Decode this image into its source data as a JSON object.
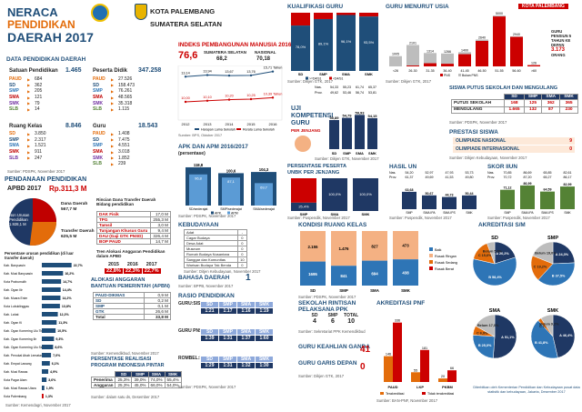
{
  "title": {
    "l1": "NERACA",
    "l2": "PENDIDIKAN",
    "l3": "DAERAH 2017",
    "region1": "KOTA PALEMBANG",
    "region2": "SUMATERA SELATAN"
  },
  "data_pendidikan": {
    "header": "DATA PENDIDIKAN DAERAH",
    "satuan": {
      "label": "Satuan Pendidikan",
      "total": "1.465",
      "rows": [
        [
          "PAUD",
          "684"
        ],
        [
          "SD",
          "362"
        ],
        [
          "SMP",
          "205"
        ],
        [
          "SMA",
          "121"
        ],
        [
          "SMK",
          "79"
        ],
        [
          "SLB",
          "14"
        ]
      ]
    },
    "peserta": {
      "label": "Peserta Didik",
      "total": "347.258",
      "rows": [
        [
          "PAUD",
          "27.526"
        ],
        [
          "SD",
          "158.473"
        ],
        [
          "SMP",
          "76.261"
        ],
        [
          "SMA",
          "48.565"
        ],
        [
          "SMK",
          "35.318"
        ],
        [
          "SLB",
          "1.115"
        ]
      ]
    },
    "ruang": {
      "label": "Ruang Kelas",
      "total": "8.846",
      "rows": [
        [
          "SD",
          "3.850"
        ],
        [
          "SMP",
          "2.317"
        ],
        [
          "SMA",
          "1.521"
        ],
        [
          "SMK",
          "911"
        ],
        [
          "SLB",
          "247"
        ]
      ]
    },
    "guru": {
      "label": "Guru",
      "total": "18.543",
      "rows": [
        [
          "PAUD",
          "1.408"
        ],
        [
          "SD",
          "7.475"
        ],
        [
          "SMP",
          "4.551"
        ],
        [
          "SMA",
          "3.018"
        ],
        [
          "SMK",
          "1.852"
        ],
        [
          "SLB",
          "239"
        ]
      ]
    },
    "src": "Sumber: PDSPK, November 2017"
  },
  "ipm": {
    "header": "INDEKS PEMBANGUNAN MANUSIA 2016",
    "val": "76,6",
    "prov_label": "SUMATERA SELATAN",
    "prov_val": "68,2",
    "nas_label": "NASIONAL",
    "nas_val": "70,18",
    "chart": {
      "type": "line",
      "x": [
        "2012",
        "2013",
        "2014",
        "2015",
        "2016"
      ],
      "top_vals": [
        "13,14",
        "13,94",
        "13,67",
        "13,76",
        "15,71 Tahun"
      ],
      "bot_vals": [
        "10,00",
        "10,10",
        "10,20",
        "10,25",
        "10,39 Tahun"
      ],
      "legend": [
        "Harapan Lama Sekolah",
        "Rerata Lama Sekolah"
      ]
    },
    "src": "Sumber: BPS, Oktober 2017"
  },
  "kualifikasi": {
    "header": "KUALIFIKASI GURU",
    "src": "Sumber: Dikjen GTK, 2017",
    "chart_data": {
      "type": "bar",
      "categories": [
        "SD",
        "SMP",
        "SMA",
        "SMK"
      ],
      "series": [
        {
          "name": ">=D4/S1",
          "values": [
            78.0,
            89.1,
            96.1,
            93.5
          ]
        },
        {
          "name": "<D4/S1",
          "values": [
            22.0,
            10.9,
            3.9,
            6.5
          ]
        }
      ]
    }
  },
  "usia": {
    "header": "GURU MENURUT USIA",
    "tag": "KOTA PALEMBANG",
    "note": "GURU PENSIUN 5 TAHUN KE DEPAN",
    "note_val": "3.173",
    "note_unit": "ORANG",
    "src": "Sumber: Dikjen GTK, 2017",
    "chart_data": {
      "type": "bar",
      "categories": [
        "<26",
        "26-30",
        "31-35",
        "36-40",
        "41-45",
        "46-50",
        "51-55",
        "56-60",
        ">60"
      ],
      "series": [
        {
          "name": "PNS",
          "values": [
            0,
            88,
            310,
            260,
            1200,
            2500,
            4900,
            2900,
            126
          ]
        },
        {
          "name": "Bukan PNS",
          "values": [
            1005,
            2013,
            1004,
            1006,
            200,
            140,
            100,
            40,
            0
          ]
        }
      ]
    }
  },
  "uk": {
    "header1": "UJI",
    "header2": "KOMPETENSI",
    "header3": "GURU",
    "sub": "PER JENJANG",
    "src": "Sumber: Dikjen GTK, November 2017",
    "nas": [
      "54,33",
      "55,23",
      "61,74",
      "65,37"
    ],
    "prov": [
      "49,62",
      "53,46",
      "56,74",
      "53,81"
    ],
    "chart_data": {
      "type": "bar",
      "categories": [
        "SD",
        "SMP",
        "SMA",
        "SMK"
      ],
      "values": [
        50.89,
        54.79,
        59.93,
        54.15
      ]
    }
  },
  "putus": {
    "header": "SISWA PUTUS SEKOLAH DAN MENGULANG",
    "cols": [
      "SD",
      "SMP",
      "SMA",
      "SMK"
    ],
    "rows": [
      [
        "PUTUS SEKOLAH",
        "168",
        "125",
        "362",
        "365"
      ],
      [
        "MENGULANG",
        "1.665",
        "132",
        "87",
        "230"
      ]
    ],
    "src": "Sumber: PDSPK, November 2017"
  },
  "prestasi": {
    "header": "PRESTASI SISWA",
    "rows": [
      [
        "OLIMPIADE NASIONAL",
        "9"
      ],
      [
        "OLIMPIADE INTERNASIONAL",
        "0"
      ]
    ],
    "src": "Sumber: Dikjen Kebudayaan, November 2017"
  },
  "apk": {
    "header": "APK DAN APM 2016/2017",
    "sub": "(persentase)",
    "src": "Sumber: PDSPK, November 2017",
    "chart_data": {
      "type": "bar",
      "categories": [
        "SD/sederajat",
        "SMP/sederajat",
        "SMA/sederajat"
      ],
      "series": [
        {
          "name": "APK",
          "values": [
            118.8,
            100.6,
            104.3
          ]
        },
        {
          "name": "APM",
          "values": [
            96.8,
            87.1,
            69.7
          ]
        }
      ]
    }
  },
  "unbk": {
    "header": "PERSENTASE PESERTA",
    "header2": "UNBK PER JENJANG",
    "src": "Sumber: Puspendik, November 2017",
    "chart_data": {
      "type": "bar",
      "categories": [
        "SMP",
        "SMA",
        "SMK"
      ],
      "series": [
        {
          "name": "UNBK",
          "values": [
            25.4,
            100.0,
            100.0
          ]
        },
        {
          "name": "UNKP",
          "values": [
            74.6,
            0,
            0
          ]
        }
      ]
    }
  },
  "hasilun": {
    "header": "HASIL UN",
    "nas": [
      "54,20",
      "52,97",
      "47,93",
      "53,73"
    ],
    "prov": [
      "61,37",
      "49,69",
      "41,53",
      "49,80"
    ],
    "src": "Sumber: Puspendik, November 2017",
    "chart_data": {
      "type": "bar",
      "categories": [
        "SMP",
        "SMA IPA",
        "SMA IPS",
        "SMK"
      ],
      "values": [
        63.68,
        50.67,
        44.73,
        50.44
      ]
    }
  },
  "skoriun": {
    "header": "SKOR IIUN",
    "nas": [
      "70,85",
      "86,69",
      "65,85",
      "82,61"
    ],
    "prov": [
      "70,72",
      "87,20",
      "65,27",
      "86,17"
    ],
    "src": "Sumber: Puspendik, November 2017",
    "chart_data": {
      "type": "bar",
      "categories": [
        "SMP",
        "SMA IPA",
        "SMA IPS",
        "SMK"
      ],
      "values": [
        71.12,
        86.99,
        64.59,
        82.99
      ]
    }
  },
  "pendanaan": {
    "header": "PENDANAAN PENDIDIKAN",
    "apbd_label": "APBD 2017",
    "apbd_val": "Rp.311,3 M",
    "non": "Non Urusan Pendidikan",
    "non_val": "1.928,1 M",
    "dana": "Dana Daerah",
    "dana_val": "567,7 M",
    "transfer": "Transfer Daerah",
    "transfer_val": "625,5 M",
    "rincian": {
      "header": "Rincian Dana Transfer Daerah Bidang pendidikan",
      "rows": [
        [
          "DAK Fisik",
          "17,0 M"
        ],
        [
          "TPG",
          "255,3 M"
        ],
        [
          "Tamsil",
          "3,0 M"
        ],
        [
          "Tunjangan Khusus Guru",
          "9,4 M"
        ],
        [
          "DAU (Gaji GTK PNSD)",
          "326,4 M"
        ],
        [
          "BOP PAUD",
          "14,7 M"
        ]
      ]
    },
    "tren": {
      "header": "Tren Alokasi Anggaran Pendidikan dalam APBD",
      "years": [
        "2015",
        "2016",
        "2017"
      ],
      "vals": [
        "22,8%",
        "22,3%",
        "22,7%"
      ]
    },
    "persentase": {
      "header": "Persentase urusan pendidikan (di luar transfer daerah)",
      "rows": [
        [
          "Kab. Banyuasin",
          "22,7%"
        ],
        [
          "Kab. Musi Banyuasin",
          "16,2%"
        ],
        [
          "Kota Prabumulih",
          "14,7%"
        ],
        [
          "Kab. Ogan Ilir",
          "14,4%"
        ],
        [
          "Kab. Muara Enim",
          "14,2%"
        ],
        [
          "Kota Lubuklinggau",
          "13,8%"
        ],
        [
          "Kab. Lahat",
          "12,2%"
        ],
        [
          "Kab. Ogan Ki",
          "11,3%"
        ],
        [
          "Kab. Ogan Komering Ulu Timur",
          "10,5%"
        ],
        [
          "Kab. Ogan Komering Ilir",
          "9,3%"
        ],
        [
          "Kab. Ogan Komering Ulu Selatan",
          "8,6%"
        ],
        [
          "Kab. Penukal Abab Lematang Ilir",
          "7,0%"
        ],
        [
          "Kab. Empat Lawang",
          "6,1%"
        ],
        [
          "Kab. Musi Rawas",
          "4,9%"
        ],
        [
          "Kota Pagar Alam",
          "3,6%"
        ],
        [
          "Kab. Musi Rawas Utara",
          "1,9%"
        ],
        [
          "Kota Palembang",
          "1,3%"
        ]
      ]
    },
    "src": "Sumber: Kemendagri, November 2017"
  },
  "alokasi": {
    "header": "ALOKASI ANGGARAN",
    "header2": "BANTUAN PEMERINTAH (APBN)",
    "rows": [
      [
        "PAUD-DIKMAS",
        "0,9 M"
      ],
      [
        "SD",
        "0,2 M"
      ],
      [
        "SMP",
        "0,1 M"
      ],
      [
        "GTK",
        "26,6 M"
      ]
    ],
    "total_label": "Total",
    "total": "33,8 M",
    "src": "Sumber: Kemendikbud, November 2017"
  },
  "realisasi": {
    "header": "PERSENTASE REALISASI",
    "header2": "PROGRAM INDONESIA PINTAR",
    "cols": [
      "SD",
      "SMP",
      "SMA",
      "SMK"
    ],
    "rows": [
      [
        "Penerima",
        "25,3%",
        "39,0%",
        "74,0%",
        "55,4%"
      ],
      [
        "Anggaran",
        "25,3%",
        "45,0%",
        "66,0%",
        "54,0%"
      ]
    ],
    "src": "Sumber: dalam satu ds, Desember 2017"
  },
  "kebudayaan": {
    "header": "KEBUDAYAAN",
    "rows": [
      [
        "Adat",
        "-"
      ],
      [
        "Cagar Budaya",
        "0"
      ],
      [
        "Desa Adat",
        "0"
      ],
      [
        "Museum",
        "0"
      ],
      [
        "Rumah Budaya Nusantara",
        "0"
      ],
      [
        "Sanggar dan Komunitas",
        "10"
      ],
      [
        "Warisan Budaya Tak Benda",
        "0"
      ]
    ],
    "src": "Sumber: Ditjen Kebudayaan, November 2017"
  },
  "bahasa": {
    "header": "BAHASA DAERAH",
    "val": "1",
    "src": "Sumber: BPPB, November 2017"
  },
  "rasio": {
    "header": "RASIO PENDIDIKAN",
    "g1": "GURU:SISWA",
    "g1c": [
      "SD",
      "SMP",
      "SMA",
      "SMK"
    ],
    "g1v": [
      "1:21",
      "1:17",
      "1:16",
      "1:19"
    ],
    "g2": "GURU PNS:SISWA",
    "g2v": [
      "1:39",
      "1:31",
      "1:37",
      "1:60"
    ],
    "g3": "ROMBEL:SISWA",
    "g3v": [
      "1:29",
      "1:31",
      "1:32",
      "1:30"
    ],
    "src": "Sumber: PDSPK, November 2017"
  },
  "kondisi": {
    "header": "KONDISI RUANG KELAS",
    "src": "Sumber: PDSPK, November 2017",
    "legend": [
      "Baik",
      "Rusak Ringan",
      "Rusak Sedang",
      "Rusak Berat"
    ],
    "chart_data": {
      "type": "bar",
      "categories": [
        "SD",
        "SMP",
        "SMA",
        "SMK"
      ],
      "series": [
        {
          "name": "Rusak Ringan",
          "values": [
            2155,
            1476,
            827,
            473
          ]
        },
        {
          "name": "Baik",
          "values": [
            1695,
            841,
            694,
            438
          ]
        }
      ]
    }
  },
  "akreditasi_sm": {
    "header": "AKREDITASI S/M",
    "labels": [
      "SD",
      "SMP",
      "SMA",
      "SMK"
    ],
    "note": "Diterbitkan oleh Kementerian Pendidikan dan Kebudayaan pusat data statistik dan kebudayaan, Jakarta, Desember 2017",
    "chart_data": [
      {
        "type": "pie",
        "title": "SD",
        "labels": [
          "A",
          "B",
          "C",
          "Belum"
        ],
        "values": [
          20.2,
          58.4,
          15.6,
          5.8
        ]
      },
      {
        "type": "pie",
        "title": "SMP",
        "labels": [
          "A",
          "B",
          "C",
          "Belum"
        ],
        "values": [
          24.3,
          37.5,
          19.2,
          19.0
        ]
      },
      {
        "type": "pie",
        "title": "SMA",
        "labels": [
          "A",
          "B",
          "C",
          "Belum"
        ],
        "values": [
          51.1,
          25.0,
          6.9,
          17.0
        ]
      },
      {
        "type": "pie",
        "title": "SMK",
        "labels": [
          "A",
          "B",
          "C",
          "Belum"
        ],
        "values": [
          46.4,
          41.8,
          2.6,
          9.2
        ]
      }
    ]
  },
  "ppk": {
    "header": "SEKOLAH RINTISAN",
    "header2": "PELAKSANA PPK",
    "cols": [
      "SD",
      "SMP",
      "TOTAL"
    ],
    "vals": [
      "4",
      "6",
      "10"
    ],
    "src": "Sumber: Sekretariat PPK Kemendikbud"
  },
  "keahlian": {
    "header": "GURU KEAHLIAN GANDA",
    "val": "41",
    "header2": "GURU GARIS DEPAN",
    "val2": "0",
    "src": "Sumber: Dikjen GTK, 2017"
  },
  "pnf": {
    "header": "AKREDITASI PNF",
    "src": "Sumber: BAN-PNF, November 2017",
    "legend": [
      "Terakreditasi",
      "Tidak terakreditasi"
    ],
    "chart_data": {
      "type": "bar",
      "categories": [
        "PAUD",
        "LKP",
        "PKBM"
      ],
      "series": [
        {
          "name": "Terakreditasi",
          "values": [
            146,
            55,
            20
          ]
        },
        {
          "name": "Tidak terakreditasi",
          "values": [
            336,
            181,
            66
          ]
        }
      ]
    }
  }
}
